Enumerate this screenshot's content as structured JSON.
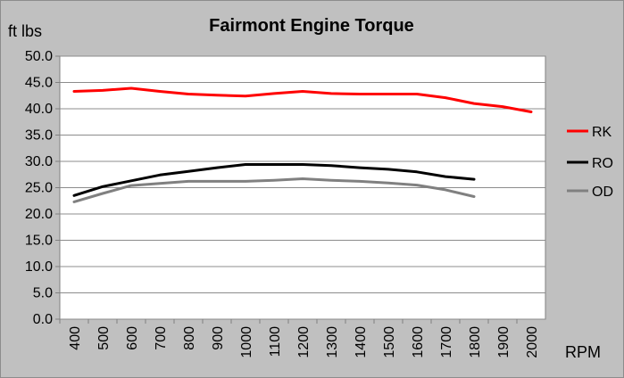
{
  "chart_data": {
    "type": "line",
    "title": "Fairmont Engine Torque",
    "ylabel": "ft lbs",
    "xlabel": "RPM",
    "categories": [
      "400",
      "500",
      "600",
      "700",
      "800",
      "900",
      "1000",
      "1100",
      "1200",
      "1300",
      "1400",
      "1500",
      "1600",
      "1700",
      "1800",
      "1900",
      "2000"
    ],
    "ylim": [
      0,
      50
    ],
    "yticks": [
      "0.0",
      "5.0",
      "10.0",
      "15.0",
      "20.0",
      "25.0",
      "30.0",
      "35.0",
      "40.0",
      "45.0",
      "50.0"
    ],
    "grid": true,
    "legend_position": "right",
    "series": [
      {
        "name": "RK",
        "color": "#ff0000",
        "values": [
          43.3,
          43.5,
          43.9,
          43.3,
          42.8,
          42.6,
          42.4,
          42.9,
          43.3,
          42.9,
          42.8,
          42.8,
          42.8,
          42.1,
          41.0,
          40.4,
          39.4
        ]
      },
      {
        "name": "RO",
        "color": "#000000",
        "values": [
          23.5,
          25.2,
          26.3,
          27.4,
          28.1,
          28.8,
          29.4,
          29.4,
          29.4,
          29.2,
          28.8,
          28.5,
          28.0,
          27.1,
          26.6,
          null,
          null
        ]
      },
      {
        "name": "OD",
        "color": "#808080",
        "values": [
          22.3,
          23.9,
          25.4,
          25.8,
          26.2,
          26.2,
          26.2,
          26.4,
          26.7,
          26.4,
          26.2,
          25.9,
          25.5,
          24.6,
          23.3,
          null,
          null
        ]
      }
    ]
  }
}
